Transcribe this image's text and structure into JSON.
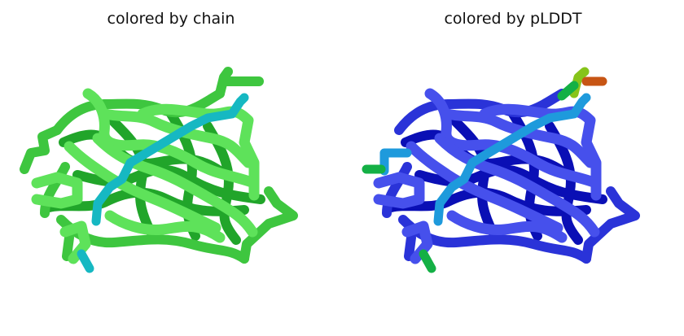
{
  "panels": [
    {
      "title": "colored by chain",
      "palette": {
        "dark": "#21a52a",
        "mid": "#3ec63f",
        "light": "#5ee25a",
        "lighter": "#72ef67",
        "accent": "#16b8c2",
        "accent2": "#1fd6e0"
      }
    },
    {
      "title": "colored by pLDDT",
      "palette": {
        "dark": "#0a0fb5",
        "mid": "#2a33d8",
        "light": "#4650ec",
        "lighter": "#5a63f4",
        "accent": "#1e9adc",
        "accent2": "#1fb2e0",
        "low_green": "#14b045",
        "low_lime": "#86c41a",
        "low_orange": "#c75514"
      }
    }
  ]
}
